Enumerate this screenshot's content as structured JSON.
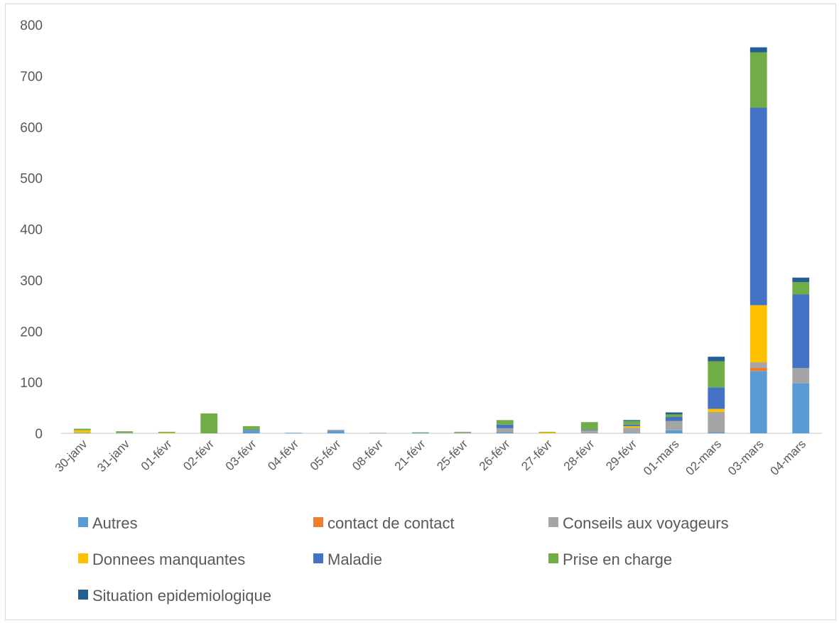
{
  "chart_data": {
    "type": "bar",
    "stacked": true,
    "title": "",
    "xlabel": "",
    "ylabel": "",
    "ylim": [
      0,
      800
    ],
    "yticks": [
      "0",
      "100",
      "200",
      "300",
      "400",
      "500",
      "600",
      "700",
      "800"
    ],
    "grid": false,
    "legend_position": "bottom",
    "categories": [
      "30-janv",
      "31-janv",
      "01-févr",
      "02-févr",
      "03-févr",
      "04-févr",
      "05-févr",
      "08-févr",
      "21-févr",
      "25-févr",
      "26-févr",
      "27-févr",
      "28-févr",
      "29-févr",
      "01-mars",
      "02-mars",
      "03-mars",
      "04-mars"
    ],
    "series": [
      {
        "name": "Autres",
        "color": "#5B9BD5",
        "values": [
          1,
          0,
          0,
          0,
          5,
          1,
          5,
          0,
          1,
          0,
          2,
          0,
          0,
          1,
          6,
          2,
          122,
          98
        ]
      },
      {
        "name": "contact de contact",
        "color": "#ED7D31",
        "values": [
          0,
          0,
          0,
          0,
          0,
          0,
          0,
          0,
          0,
          0,
          0,
          0,
          0,
          0,
          0,
          0,
          6,
          0
        ]
      },
      {
        "name": "Conseils aux voyageurs",
        "color": "#A5A5A5",
        "values": [
          0,
          1,
          0,
          0,
          1,
          0,
          2,
          1,
          0,
          2,
          8,
          0,
          6,
          10,
          18,
          40,
          11,
          30
        ]
      },
      {
        "name": "Donnees manquantes",
        "color": "#FFC000",
        "values": [
          5,
          0,
          1,
          0,
          0,
          0,
          0,
          0,
          0,
          0,
          0,
          2,
          0,
          3,
          0,
          6,
          112,
          0
        ]
      },
      {
        "name": "Maladie",
        "color": "#4472C4",
        "values": [
          0,
          0,
          0,
          0,
          1,
          0,
          0,
          0,
          0,
          0,
          7,
          0,
          1,
          3,
          8,
          42,
          387,
          144
        ]
      },
      {
        "name": "Prise en charge",
        "color": "#70AD47",
        "values": [
          3,
          3,
          2,
          39,
          7,
          0,
          0,
          0,
          1,
          1,
          9,
          1,
          15,
          7,
          5,
          51,
          108,
          24
        ]
      },
      {
        "name": "Situation epidemiologique",
        "color": "#255E91",
        "values": [
          0,
          0,
          0,
          0,
          0,
          0,
          0,
          0,
          0,
          0,
          0,
          0,
          0,
          2,
          4,
          9,
          10,
          9
        ]
      }
    ]
  }
}
